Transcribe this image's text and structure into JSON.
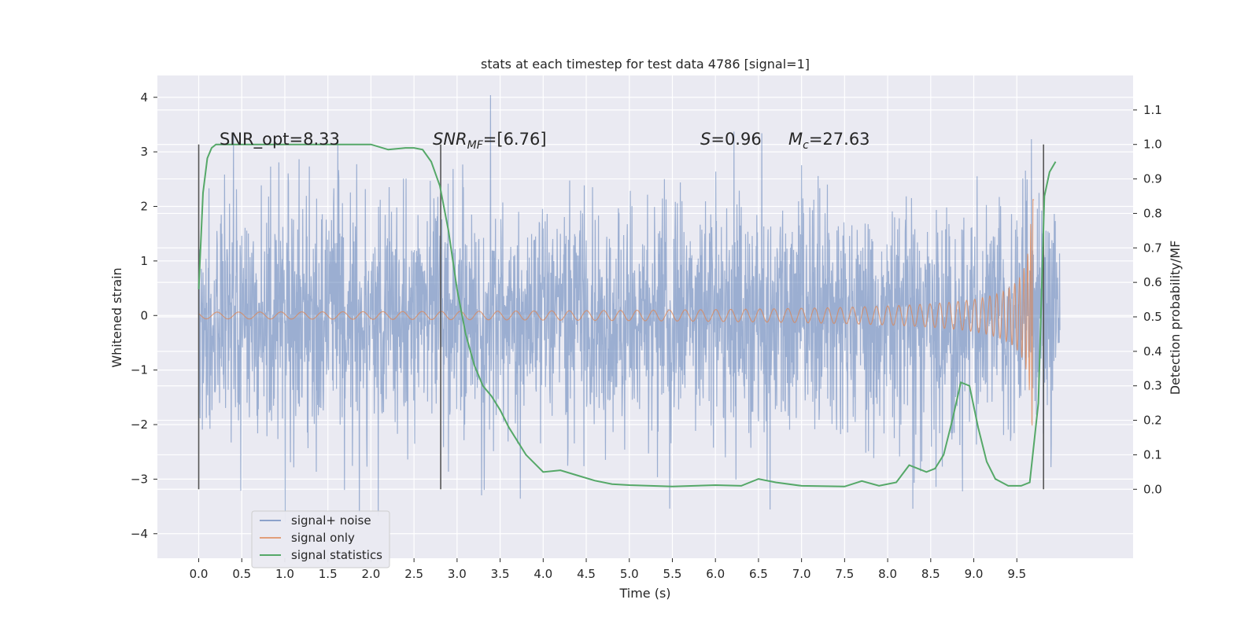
{
  "chart_data": {
    "type": "line",
    "title": "stats at each timestep for test data 4786 [signal=1]",
    "xlabel": "Time (s)",
    "ylabel": "Whitened strain",
    "ylabel_right": "Detection probability/MF",
    "xlim": [
      -0.48,
      10.85
    ],
    "ylim": [
      -4.45,
      4.4
    ],
    "ylim_right": [
      -0.2,
      1.2
    ],
    "xticks": [
      "0.0",
      "0.5",
      "1.0",
      "1.5",
      "2.0",
      "2.5",
      "3.0",
      "3.5",
      "4.0",
      "4.5",
      "5.0",
      "5.5",
      "6.0",
      "6.5",
      "7.0",
      "7.5",
      "8.0",
      "8.5",
      "9.0",
      "9.5"
    ],
    "yticks": [
      "−4",
      "−3",
      "−2",
      "−1",
      "0",
      "1",
      "2",
      "3",
      "4"
    ],
    "yticks_right": [
      "0.0",
      "0.1",
      "0.2",
      "0.3",
      "0.4",
      "0.5",
      "0.6",
      "0.7",
      "0.8",
      "0.9",
      "1.0",
      "1.1"
    ],
    "grid": true,
    "legend_position": "lower-left",
    "annotations": {
      "snr_opt": "SNR_opt=8.33",
      "snr_mf_label": "SNR",
      "snr_mf_sub": "MF",
      "snr_mf_value": "=[6.76]",
      "s_label": "S",
      "s_value": "=0.96",
      "mc_label": "M",
      "mc_sub": "c",
      "mc_value": "=27.63"
    },
    "vertical_markers": [
      0.0,
      2.81,
      9.81
    ],
    "series": [
      {
        "name": "signal+ noise",
        "color": "#4c72b0",
        "kind": "noise",
        "x_range": [
          0.0,
          10.0
        ],
        "approx_std": 1.0
      },
      {
        "name": "signal only",
        "color": "#dd8452",
        "kind": "chirp",
        "x_range": [
          0.0,
          9.7
        ],
        "peak_amplitude": 2.15
      },
      {
        "name": "signal statistics",
        "color": "#55a868",
        "axis": "right",
        "x": [
          0.0,
          0.05,
          0.1,
          0.15,
          0.2,
          0.3,
          0.5,
          1.0,
          1.5,
          2.0,
          2.2,
          2.4,
          2.5,
          2.6,
          2.7,
          2.8,
          2.9,
          3.0,
          3.1,
          3.2,
          3.3,
          3.4,
          3.5,
          3.6,
          3.8,
          4.0,
          4.2,
          4.4,
          4.6,
          4.8,
          5.0,
          5.5,
          6.0,
          6.3,
          6.5,
          6.7,
          7.0,
          7.5,
          7.7,
          7.9,
          8.1,
          8.25,
          8.35,
          8.45,
          8.55,
          8.65,
          8.75,
          8.85,
          8.95,
          9.05,
          9.15,
          9.25,
          9.4,
          9.55,
          9.65,
          9.75,
          9.82,
          9.88,
          9.95
        ],
        "y": [
          0.58,
          0.86,
          0.96,
          0.99,
          1.0,
          1.0,
          1.0,
          1.0,
          1.0,
          1.0,
          0.985,
          0.99,
          0.99,
          0.985,
          0.95,
          0.88,
          0.75,
          0.58,
          0.45,
          0.36,
          0.3,
          0.27,
          0.23,
          0.18,
          0.1,
          0.05,
          0.055,
          0.04,
          0.025,
          0.015,
          0.012,
          0.008,
          0.012,
          0.01,
          0.03,
          0.02,
          0.01,
          0.008,
          0.024,
          0.01,
          0.02,
          0.07,
          0.06,
          0.05,
          0.06,
          0.1,
          0.2,
          0.31,
          0.3,
          0.18,
          0.08,
          0.03,
          0.01,
          0.01,
          0.02,
          0.25,
          0.85,
          0.92,
          0.95
        ]
      }
    ]
  }
}
